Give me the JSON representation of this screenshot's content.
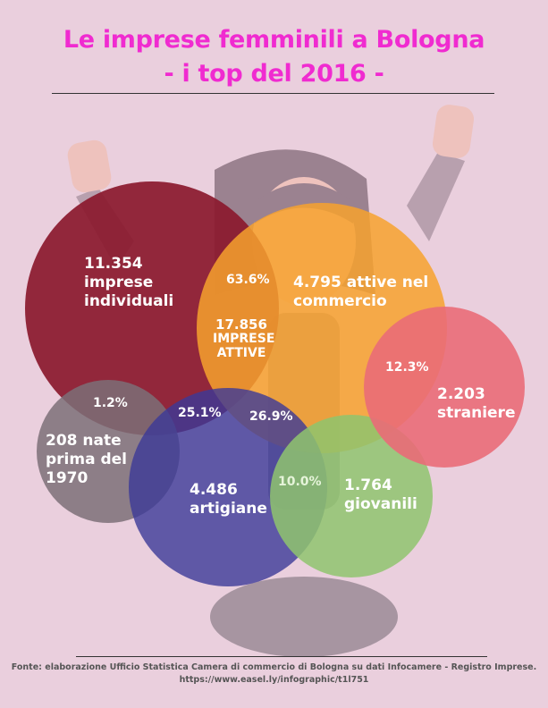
{
  "title": {
    "line1": "Le imprese femminili a Bologna",
    "line2": "- i top del 2016 -"
  },
  "colors": {
    "background": "#eacfdd",
    "title": "#f02bd0",
    "imprese_individuali": "#8b1a2e",
    "commercio": "#f7a22e",
    "straniere": "#ea6b78",
    "giovanili": "#8fc46e",
    "artigiane": "#3c3a99",
    "nate_prima_1970": "#7d7078"
  },
  "center": {
    "value": "17.856",
    "label_line1": "IMPRESE",
    "label_line2": "ATTIVE"
  },
  "circles": {
    "imprese_individuali": {
      "value": "11.354",
      "line1": "imprese",
      "line2": "individuali",
      "percent": "63.6%"
    },
    "commercio": {
      "line1": "4.795 attive nel",
      "line2": "commercio",
      "percent": "26.9%"
    },
    "straniere": {
      "value": "2.203",
      "line1": "straniere",
      "percent": "12.3%"
    },
    "giovanili": {
      "value": "1.764",
      "line1": "giovanili",
      "percent": "10.0%"
    },
    "artigiane": {
      "value": "4.486",
      "line1": "artigiane",
      "percent": "25.1%"
    },
    "nate_prima_1970": {
      "line1": "208 nate",
      "line2": "prima del",
      "line3": "1970",
      "percent": "1.2%"
    }
  },
  "source": {
    "line1": "Fonte: elaborazione Ufficio Statistica Camera di commercio di Bologna su dati Infocamere - Registro Imprese.",
    "line2": "https://www.easel.ly/infographic/t1l751"
  }
}
